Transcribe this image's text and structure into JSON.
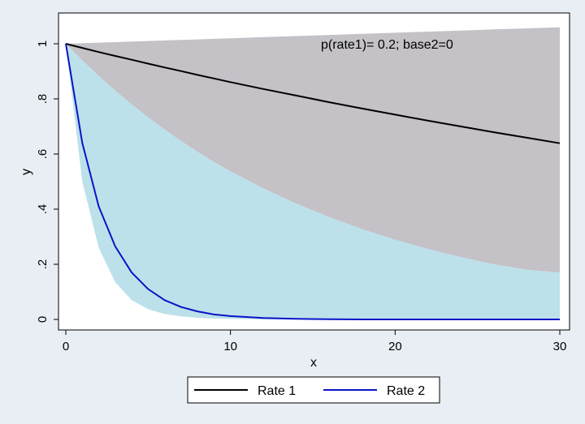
{
  "chart_data": {
    "type": "line",
    "title": "",
    "note": "p(rate1)= 0.2; base2=0",
    "xlabel": "x",
    "ylabel": "y",
    "xlim": [
      0,
      30
    ],
    "ylim": [
      0,
      1
    ],
    "x_ticks": [
      0,
      10,
      20,
      30
    ],
    "x_tick_labels": [
      "0",
      "10",
      "20",
      "30"
    ],
    "y_ticks": [
      0,
      0.2,
      0.4,
      0.6,
      0.8,
      1
    ],
    "y_tick_labels": [
      "0",
      ".2",
      ".4",
      ".6",
      ".8",
      "1"
    ],
    "grid": false,
    "legend_position": "bottom",
    "colors": {
      "rate1_line": "#000000",
      "rate2_line": "#0a14c8",
      "rate1_band": "#c4c1c7",
      "rate2_band": "#bde1ea",
      "plot_bg": "#ffffff",
      "outer_bg": "#e8eef4"
    },
    "x": [
      0,
      1,
      2,
      3,
      4,
      5,
      6,
      7,
      8,
      9,
      10,
      12,
      14,
      16,
      18,
      20,
      22,
      24,
      26,
      28,
      30
    ],
    "series": [
      {
        "name": "Rate 1",
        "values": [
          1.0,
          0.985,
          0.97,
          0.956,
          0.942,
          0.928,
          0.914,
          0.901,
          0.887,
          0.874,
          0.861,
          0.836,
          0.812,
          0.788,
          0.765,
          0.743,
          0.721,
          0.7,
          0.679,
          0.659,
          0.639
        ]
      },
      {
        "name": "Rate 2",
        "values": [
          1.0,
          0.64,
          0.41,
          0.265,
          0.17,
          0.11,
          0.07,
          0.045,
          0.029,
          0.018,
          0.012,
          0.005,
          0.002,
          0.001,
          0.0,
          0.0,
          0.0,
          0.0,
          0.0,
          0.0,
          0.0
        ]
      }
    ],
    "bands": [
      {
        "series": "Rate 1",
        "lower": [
          1.0,
          0.94,
          0.883,
          0.83,
          0.78,
          0.733,
          0.689,
          0.647,
          0.608,
          0.571,
          0.537,
          0.475,
          0.42,
          0.371,
          0.327,
          0.289,
          0.255,
          0.226,
          0.2,
          0.18,
          0.17
        ],
        "upper": [
          1.0,
          1.002,
          1.004,
          1.006,
          1.008,
          1.01,
          1.012,
          1.014,
          1.016,
          1.018,
          1.02,
          1.024,
          1.028,
          1.032,
          1.036,
          1.04,
          1.044,
          1.048,
          1.052,
          1.056,
          1.06
        ]
      },
      {
        "series": "Rate 2",
        "lower": [
          1.0,
          0.5,
          0.26,
          0.135,
          0.07,
          0.037,
          0.02,
          0.011,
          0.006,
          0.003,
          0.002,
          0.0,
          0.0,
          0.0,
          0.0,
          0.0,
          0.0,
          0.0,
          0.0,
          0.0,
          0.0
        ],
        "upper": [
          1.0,
          0.94,
          0.883,
          0.83,
          0.78,
          0.733,
          0.689,
          0.647,
          0.608,
          0.571,
          0.537,
          0.475,
          0.42,
          0.371,
          0.327,
          0.289,
          0.255,
          0.226,
          0.2,
          0.18,
          0.17
        ]
      }
    ]
  }
}
